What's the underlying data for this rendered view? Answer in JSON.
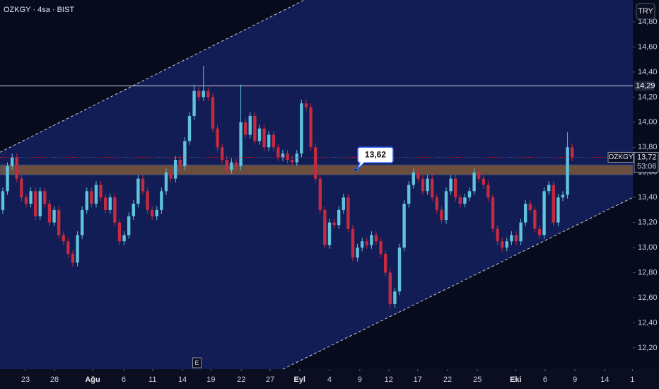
{
  "chart_data": {
    "type": "candlestick",
    "title": "OZKGY · 4sa · BIST",
    "currency": "TRY",
    "event_marker": "E",
    "x": [
      0,
      1,
      2,
      3,
      4,
      5,
      6,
      7,
      8,
      9,
      10,
      11,
      12,
      13,
      14,
      15,
      16,
      17,
      18,
      19,
      20,
      21,
      22,
      23,
      24,
      25,
      26,
      27,
      28,
      29,
      30,
      31,
      32,
      33,
      34,
      35,
      36,
      37,
      38,
      39,
      40,
      41,
      42,
      43,
      44,
      45,
      46,
      47,
      48,
      49,
      50,
      51,
      52,
      53,
      54,
      55,
      56,
      57,
      58,
      59,
      60,
      61,
      62,
      63,
      64,
      65,
      66,
      67,
      68,
      69,
      70,
      71,
      72,
      73,
      74,
      75,
      76,
      77,
      78,
      79,
      80,
      81,
      82,
      83,
      84,
      85,
      86,
      87,
      88,
      89,
      90,
      91,
      92,
      93,
      94,
      95,
      96,
      97,
      98,
      99,
      100,
      101,
      102,
      103,
      104,
      105,
      106,
      107,
      108,
      109,
      110,
      111,
      112,
      113,
      114,
      115,
      116,
      117,
      118,
      119,
      120,
      121,
      122
    ],
    "open": [
      13.3,
      13.45,
      13.65,
      13.72,
      13.55,
      13.4,
      13.35,
      13.45,
      13.25,
      13.45,
      13.35,
      13.2,
      13.3,
      13.1,
      13.05,
      12.95,
      12.88,
      13.1,
      13.3,
      13.45,
      13.35,
      13.5,
      13.4,
      13.3,
      13.4,
      13.2,
      13.05,
      13.1,
      13.25,
      13.35,
      13.55,
      13.45,
      13.3,
      13.25,
      13.3,
      13.45,
      13.6,
      13.55,
      13.7,
      13.65,
      13.85,
      14.05,
      14.25,
      14.2,
      14.25,
      14.2,
      13.95,
      13.8,
      13.7,
      13.62,
      13.68,
      13.65,
      14.0,
      13.9,
      14.05,
      13.85,
      13.95,
      13.8,
      13.9,
      13.8,
      13.72,
      13.75,
      13.7,
      13.68,
      13.75,
      14.15,
      14.12,
      13.8,
      13.55,
      13.3,
      13.02,
      13.2,
      13.18,
      13.3,
      13.4,
      13.15,
      12.92,
      13.0,
      13.05,
      13.02,
      13.1,
      13.05,
      12.95,
      12.8,
      12.55,
      12.65,
      13.0,
      13.35,
      13.5,
      13.6,
      13.55,
      13.45,
      13.55,
      13.4,
      13.3,
      13.22,
      13.45,
      13.55,
      13.4,
      13.35,
      13.4,
      13.45,
      13.6,
      13.55,
      13.5,
      13.4,
      13.15,
      13.05,
      13.0,
      13.05,
      13.1,
      13.05,
      13.2,
      13.35,
      13.3,
      13.15,
      13.1,
      13.45,
      13.5,
      13.2,
      13.4,
      13.42,
      13.8
    ],
    "high": [
      13.48,
      13.68,
      13.75,
      13.75,
      13.58,
      13.43,
      13.48,
      13.48,
      13.48,
      13.48,
      13.38,
      13.33,
      13.33,
      13.13,
      13.08,
      12.98,
      13.13,
      13.33,
      13.48,
      13.48,
      13.53,
      13.53,
      13.43,
      13.43,
      13.43,
      13.23,
      13.13,
      13.28,
      13.38,
      13.58,
      13.58,
      13.48,
      13.33,
      13.33,
      13.48,
      13.63,
      13.63,
      13.73,
      13.73,
      13.88,
      14.08,
      14.3,
      14.28,
      14.45,
      14.28,
      14.23,
      13.98,
      13.83,
      13.73,
      13.71,
      13.71,
      14.3,
      14.03,
      14.08,
      14.08,
      13.98,
      13.98,
      13.93,
      13.93,
      13.83,
      13.78,
      13.78,
      13.73,
      13.78,
      14.18,
      14.18,
      14.15,
      13.83,
      13.58,
      13.33,
      13.23,
      13.23,
      13.33,
      13.43,
      13.43,
      13.18,
      13.03,
      13.08,
      13.08,
      13.13,
      13.13,
      13.08,
      12.98,
      12.83,
      12.68,
      13.03,
      13.38,
      13.53,
      13.63,
      13.63,
      13.58,
      13.58,
      13.58,
      13.43,
      13.33,
      13.48,
      13.58,
      13.58,
      13.43,
      13.43,
      13.48,
      13.63,
      13.63,
      13.58,
      13.53,
      13.43,
      13.18,
      13.08,
      13.08,
      13.13,
      13.13,
      13.23,
      13.38,
      13.38,
      13.33,
      13.18,
      13.48,
      13.53,
      13.53,
      13.43,
      13.45,
      13.92,
      13.83
    ],
    "low": [
      13.27,
      13.42,
      13.62,
      13.52,
      13.37,
      13.32,
      13.32,
      13.22,
      13.22,
      13.32,
      13.17,
      13.17,
      13.07,
      13.02,
      12.92,
      12.85,
      12.85,
      13.07,
      13.27,
      13.32,
      13.32,
      13.37,
      13.27,
      13.27,
      13.17,
      13.02,
      13.02,
      13.07,
      13.22,
      13.32,
      13.42,
      13.27,
      13.22,
      13.22,
      13.27,
      13.42,
      13.52,
      13.52,
      13.62,
      13.62,
      13.82,
      14.02,
      14.17,
      14.17,
      14.17,
      13.92,
      13.77,
      13.67,
      13.59,
      13.59,
      13.62,
      13.62,
      13.87,
      13.87,
      13.82,
      13.82,
      13.77,
      13.77,
      13.77,
      13.69,
      13.69,
      13.67,
      13.65,
      13.65,
      13.72,
      14.09,
      13.77,
      13.52,
      13.27,
      12.99,
      12.99,
      13.15,
      13.15,
      13.27,
      13.12,
      12.89,
      12.89,
      12.97,
      12.99,
      12.99,
      13.02,
      12.92,
      12.77,
      12.52,
      12.52,
      12.62,
      12.97,
      13.32,
      13.47,
      13.52,
      13.42,
      13.42,
      13.37,
      13.27,
      13.19,
      13.19,
      13.42,
      13.37,
      13.32,
      13.32,
      13.37,
      13.42,
      13.52,
      13.47,
      13.37,
      13.12,
      13.02,
      12.97,
      12.97,
      13.02,
      13.02,
      13.02,
      13.17,
      13.27,
      13.12,
      13.07,
      13.07,
      13.42,
      13.17,
      13.17,
      13.37,
      13.39,
      13.69
    ],
    "close": [
      13.45,
      13.65,
      13.72,
      13.55,
      13.4,
      13.35,
      13.45,
      13.25,
      13.45,
      13.35,
      13.2,
      13.3,
      13.1,
      13.05,
      12.95,
      12.88,
      13.1,
      13.3,
      13.45,
      13.35,
      13.5,
      13.4,
      13.3,
      13.4,
      13.2,
      13.05,
      13.1,
      13.25,
      13.35,
      13.55,
      13.45,
      13.3,
      13.25,
      13.3,
      13.45,
      13.6,
      13.55,
      13.7,
      13.65,
      13.85,
      14.05,
      14.25,
      14.2,
      14.25,
      14.2,
      13.95,
      13.8,
      13.7,
      13.62,
      13.68,
      13.65,
      14.0,
      13.9,
      14.05,
      13.85,
      13.95,
      13.8,
      13.9,
      13.8,
      13.72,
      13.75,
      13.7,
      13.68,
      13.75,
      14.15,
      14.12,
      13.8,
      13.55,
      13.3,
      13.02,
      13.2,
      13.18,
      13.3,
      13.4,
      13.15,
      12.92,
      13.0,
      13.05,
      13.02,
      13.1,
      13.05,
      12.95,
      12.8,
      12.55,
      12.65,
      13.0,
      13.35,
      13.5,
      13.6,
      13.55,
      13.45,
      13.55,
      13.4,
      13.3,
      13.22,
      13.45,
      13.55,
      13.4,
      13.35,
      13.4,
      13.45,
      13.6,
      13.55,
      13.5,
      13.4,
      13.15,
      13.05,
      13.0,
      13.05,
      13.1,
      13.05,
      13.2,
      13.35,
      13.3,
      13.15,
      13.1,
      13.45,
      13.5,
      13.2,
      13.4,
      13.42,
      13.8,
      13.72
    ],
    "up_color": "#5fc3dc",
    "down_color": "#c42a40",
    "xlim": [
      -0.6,
      135.0
    ],
    "xticks": [
      {
        "value": 4.85,
        "label": "23"
      },
      {
        "value": 11.07,
        "label": "28"
      },
      {
        "value": 19.25,
        "label": "Ağu"
      },
      {
        "value": 25.9,
        "label": "6"
      },
      {
        "value": 32.1,
        "label": "11"
      },
      {
        "value": 38.5,
        "label": "14"
      },
      {
        "value": 44.6,
        "label": "19"
      },
      {
        "value": 51.1,
        "label": "22"
      },
      {
        "value": 57.3,
        "label": "27"
      },
      {
        "value": 63.6,
        "label": "Eyl"
      },
      {
        "value": 70.0,
        "label": "4"
      },
      {
        "value": 76.5,
        "label": "9"
      },
      {
        "value": 82.7,
        "label": "12"
      },
      {
        "value": 88.9,
        "label": "17"
      },
      {
        "value": 95.3,
        "label": "22"
      },
      {
        "value": 101.7,
        "label": "25"
      },
      {
        "value": 109.9,
        "label": "Eki"
      },
      {
        "value": 116.2,
        "label": "6"
      },
      {
        "value": 122.6,
        "label": "9"
      },
      {
        "value": 129.0,
        "label": "14"
      },
      {
        "value": 134.9,
        "label": "1"
      }
    ],
    "event_x": 41.6,
    "ylim": [
      12.03,
      14.975
    ],
    "yticks": [
      {
        "value": 12.2,
        "label": "12,20"
      },
      {
        "value": 12.4,
        "label": "12,40"
      },
      {
        "value": 12.6,
        "label": "12,60"
      },
      {
        "value": 12.8,
        "label": "12,80"
      },
      {
        "value": 13.0,
        "label": "13,00"
      },
      {
        "value": 13.2,
        "label": "13,20"
      },
      {
        "value": 13.4,
        "label": "13,40"
      },
      {
        "value": 13.6,
        "label": "13,60"
      },
      {
        "value": 13.8,
        "label": "13,80"
      },
      {
        "value": 14.0,
        "label": "14,00"
      },
      {
        "value": 14.2,
        "label": "14,20"
      },
      {
        "value": 14.4,
        "label": "14,40"
      },
      {
        "value": 14.6,
        "label": "14,60"
      },
      {
        "value": 14.8,
        "label": "14,80"
      }
    ],
    "channel": {
      "upper_x": [
        -0.6,
        64.6
      ],
      "upper_y": [
        13.76,
        14.975
      ],
      "lower_x": [
        60.0,
        135.0
      ],
      "lower_y": [
        12.03,
        13.4
      ]
    },
    "zone": {
      "low": 13.58,
      "high": 13.66
    },
    "hline": {
      "value": 14.29,
      "label": "14,29"
    },
    "annotation": {
      "x": 75.6,
      "value": 13.62,
      "label": "13,62"
    },
    "last_price": {
      "symbol": "OZKGY",
      "value": 13.72,
      "label": "13,72",
      "countdown": "53:06"
    }
  }
}
